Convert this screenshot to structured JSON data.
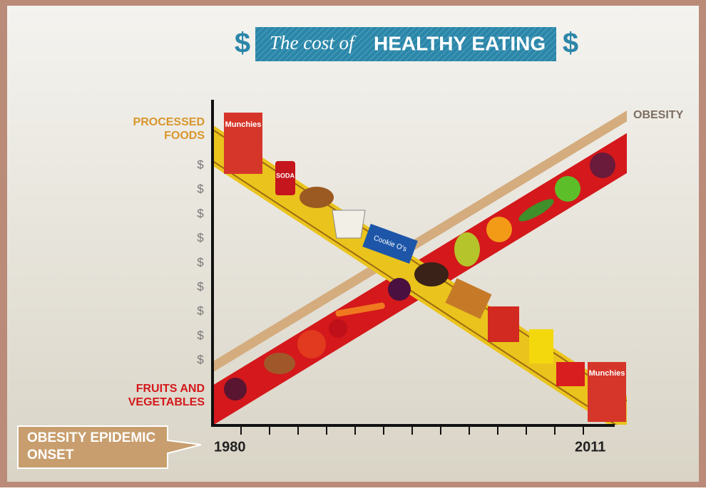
{
  "title": {
    "left_symbol": "$",
    "prefix": "The cost of",
    "emphasis": "HEALTHY EATING",
    "right_symbol": "$"
  },
  "top_label": [
    "PROCESSED",
    "FOODS"
  ],
  "cost_markers": [
    "$",
    "$",
    "$",
    "$",
    "$",
    "$",
    "$",
    "$",
    "$"
  ],
  "bottom_label": [
    "FRUITS AND",
    "VEGETABLES"
  ],
  "trend_label": "OBESITY",
  "callout": [
    "OBESITY EPIDEMIC",
    "ONSET"
  ],
  "x_axis": {
    "start": "1980",
    "end": "2011"
  },
  "items": {
    "soda": "SODA",
    "cookies": "Cookie O's",
    "chips": "Munchies"
  }
}
